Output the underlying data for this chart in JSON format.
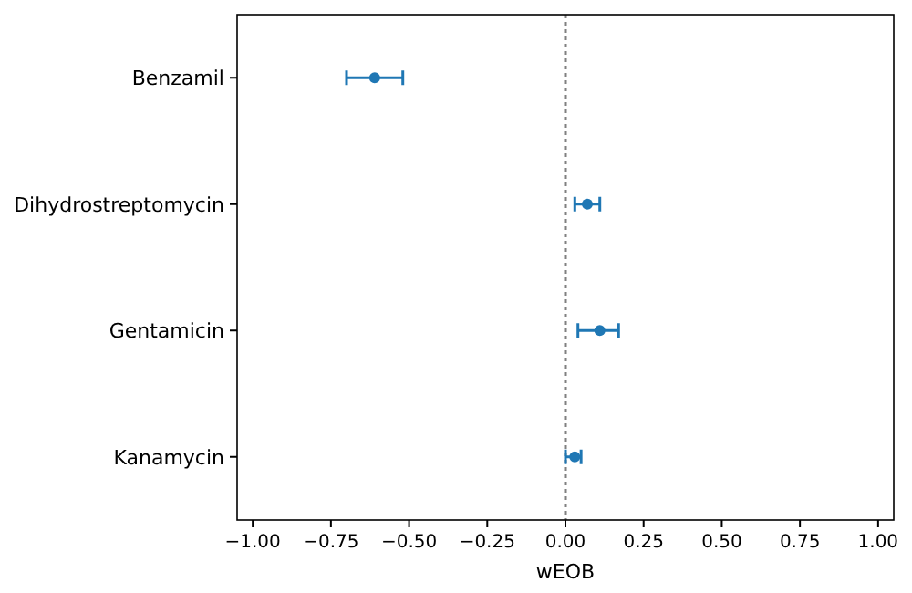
{
  "chart_data": {
    "type": "scatter",
    "orientation": "horizontal",
    "xlabel": "wEOB",
    "categories": [
      "Benzamil",
      "Dihydrostreptomycin",
      "Gentamicin",
      "Kanamycin"
    ],
    "values": [
      -0.61,
      0.07,
      0.11,
      0.03
    ],
    "errors": [
      [
        -0.7,
        -0.52
      ],
      [
        0.03,
        0.11
      ],
      [
        0.04,
        0.17
      ],
      [
        0.0,
        0.05
      ]
    ],
    "color": "#1f77b4",
    "marker": "circle",
    "xlim": [
      -1.05,
      1.05
    ],
    "xticks": [
      {
        "value": -1,
        "label": "−1.00"
      },
      {
        "value": -0.75,
        "label": "−0.75"
      },
      {
        "value": -0.5,
        "label": "−0.50"
      },
      {
        "value": -0.25,
        "label": "−0.25"
      },
      {
        "value": 0,
        "label": "0.00"
      },
      {
        "value": 0.25,
        "label": "0.25"
      },
      {
        "value": 0.5,
        "label": "0.50"
      },
      {
        "value": 0.75,
        "label": "0.75"
      },
      {
        "value": 1,
        "label": "1.00"
      }
    ],
    "ref_lines": [
      {
        "axis": "x",
        "value": 0,
        "color": "#808080",
        "line_style": "dotted"
      }
    ],
    "grid": false
  }
}
